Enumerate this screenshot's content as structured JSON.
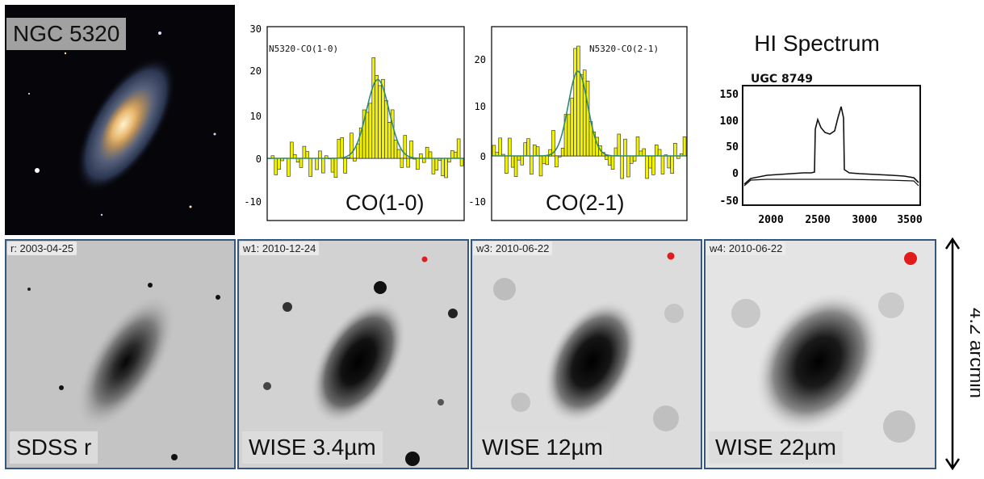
{
  "top_panels": {
    "optical": {
      "caption": "NGC 5320"
    },
    "co10": {
      "inner_label": "N5320-CO(1-0)",
      "caption": "CO(1-0)",
      "yticks": [
        "30",
        "20",
        "10",
        "0",
        "-10"
      ]
    },
    "co21": {
      "inner_label": "N5320-CO(2-1)",
      "caption": "CO(2-1)",
      "yticks": [
        "20",
        "10",
        "0",
        "-10"
      ]
    },
    "hi": {
      "title": "HI Spectrum",
      "inner_label": "UGC 8749",
      "yticks": [
        "150",
        "100",
        "50",
        "0",
        "-50"
      ],
      "xticks": [
        "2000",
        "2500",
        "3000",
        "3500"
      ]
    }
  },
  "bottom_panels": [
    {
      "date": "r: 2003-04-25",
      "caption": "SDSS r"
    },
    {
      "date": "w1: 2010-12-24",
      "caption": "WISE 3.4µm"
    },
    {
      "date": "w3: 2010-06-22",
      "caption": "WISE 12µm"
    },
    {
      "date": "w4: 2010-06-22",
      "caption": "WISE 22µm"
    }
  ],
  "scale_bar": {
    "label": "4.2 arcmin"
  },
  "colors": {
    "frame": "#34577f",
    "spectrum_fill": "#f2f200",
    "fit_line": "#2f8a6e",
    "psf_dot": "#e21b1b"
  }
}
